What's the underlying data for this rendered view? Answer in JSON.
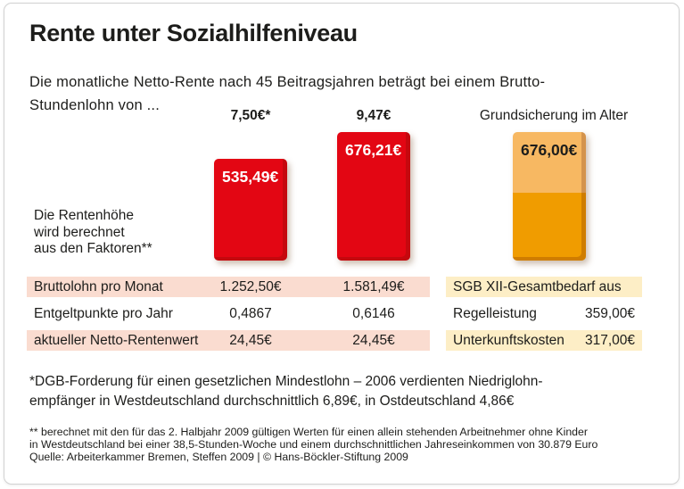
{
  "header": {
    "title": "Rente unter Sozialhilfeniveau",
    "subtitle_line1": "Die monatliche Netto-Rente nach 45 Beitragsjahren beträgt bei einem Brutto-",
    "subtitle_line2": "Stundenlohn von ..."
  },
  "chart_data": {
    "type": "bar",
    "title": "Rente unter Sozialhilfeniveau",
    "subtitle": "Die monatliche Netto-Rente nach 45 Beitragsjahren beträgt bei einem Brutto-Stundenlohn von ...",
    "categories": [
      "7,50€*",
      "9,47€",
      "Grundsicherung im Alter"
    ],
    "values": [
      535.49,
      676.21,
      676.0
    ],
    "value_labels": [
      "535,49€",
      "676,21€",
      "676,00€"
    ],
    "bar3_stack": [
      {
        "name": "Regelleistung",
        "value": 359.0
      },
      {
        "name": "Unterkunftskosten",
        "value": 317.0
      }
    ],
    "xlabel": "",
    "ylabel": "",
    "axis": "none",
    "legend": "none"
  },
  "annotation": {
    "line1": "Die Rentenhöhe",
    "line2": "wird berechnet",
    "line3": "aus den Faktoren**"
  },
  "factors_table": {
    "rows": [
      {
        "label": "Bruttolohn pro Monat",
        "val1": "1.252,50€",
        "val2": "1.581,49€"
      },
      {
        "label": "Entgeltpunkte pro Jahr",
        "val1": "0,4867",
        "val2": "0,6146"
      },
      {
        "label": "aktueller Netto-Rentenwert",
        "val1": "24,45€",
        "val2": "24,45€"
      }
    ]
  },
  "needs_table": {
    "header": "SGB XII-Gesamtbedarf aus",
    "rows": [
      {
        "label": "Regelleistung",
        "value": "359,00€"
      },
      {
        "label": "Unterkunftskosten",
        "value": "317,00€"
      }
    ]
  },
  "footnotes": {
    "fn1_line1": "*DGB-Forderung für einen gesetzlichen Mindestlohn – 2006 verdienten Niedriglohn-",
    "fn1_line2": "empfänger in Westdeutschland durchschnittlich 6,89€, in Ostdeutschland 4,86€",
    "fn2_line1": "** berechnet mit den für das 2. Halbjahr 2009 gültigen Werten für einen allein stehenden Arbeitnehmer ohne Kinder",
    "fn2_line2": "in Westdeutschland bei einer 38,5-Stunden-Woche und einem durchschnittlichen Jahreseinkommen von 30.879 Euro",
    "source": "Quelle: Arbeiterkammer Bremen, Steffen 2009 | © Hans-Böckler-Stiftung 2009"
  },
  "colors": {
    "bar_red": "#e30613",
    "bar_orange_light": "#f7b862",
    "bar_orange_dark": "#f09c00",
    "row_pink": "#fadcd0",
    "row_cream": "#fdeec6",
    "text": "#1d1d1b"
  }
}
